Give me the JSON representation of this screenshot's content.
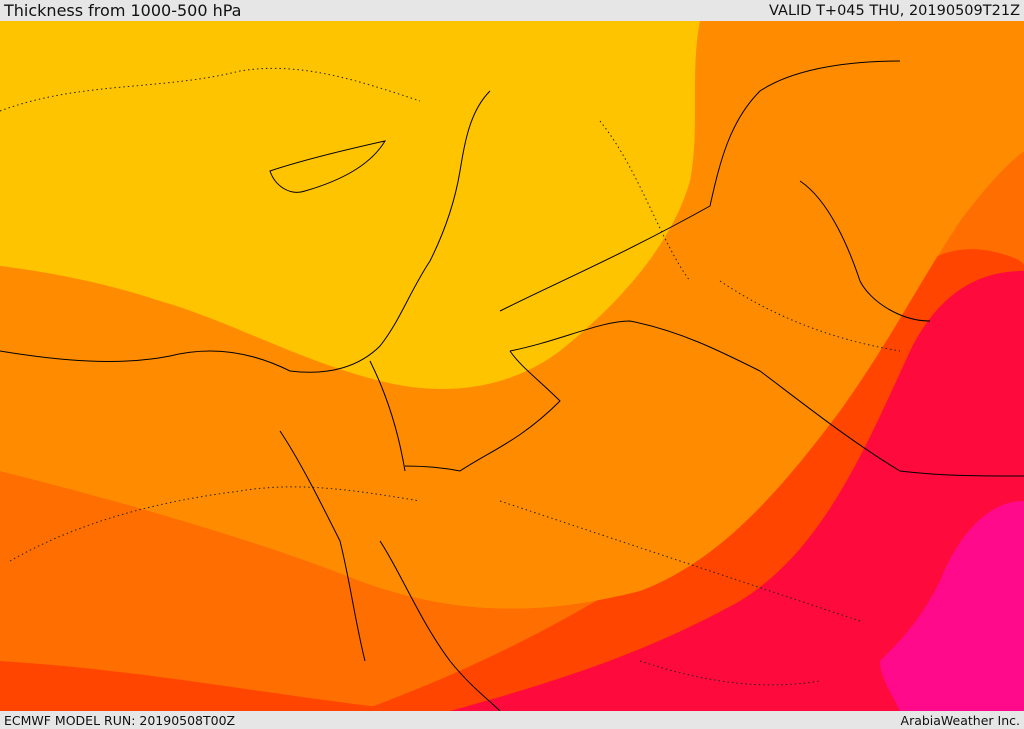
{
  "header": {
    "title": "Thickness from 1000-500 hPa",
    "valid": "VALID T+045 THU, 20190509T21Z"
  },
  "footer": {
    "model_run": "ECMWF MODEL RUN: 20190508T00Z",
    "credit": "ArabiaWeather Inc."
  },
  "map": {
    "variable": "1000-500 hPa thickness",
    "palette": [
      "#ffe100",
      "#ffc400",
      "#ffa500",
      "#ff8c00",
      "#ff6e00",
      "#ff4500",
      "#ff2d1f",
      "#ff0a3c",
      "#ff0a8a"
    ]
  }
}
